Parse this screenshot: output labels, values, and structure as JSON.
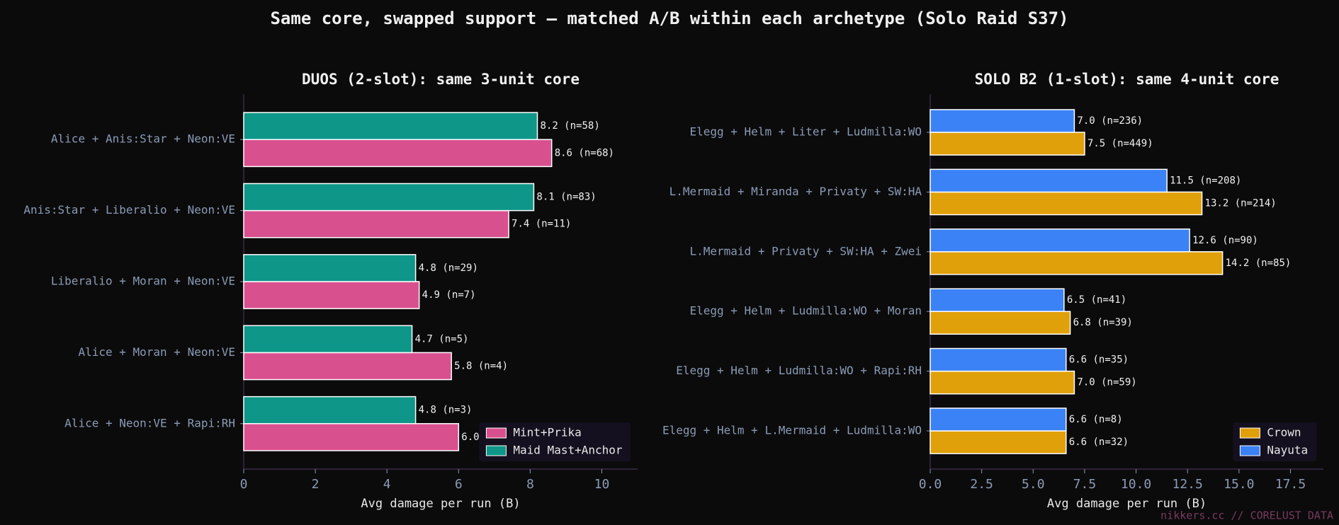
{
  "title": "Same core, swapped support — matched A/B within each archetype  (Solo Raid S37)",
  "footer": "nikkers.cc // CORELUST DATA",
  "chart_data": [
    {
      "type": "barh",
      "title": "DUOS (2-slot): same 3-unit core",
      "x_label": "Avg damage per run (B)",
      "categories": [
        "Alice + Anis:Star + Neon:VE",
        "Anis:Star + Liberalio + Neon:VE",
        "Liberalio + Moran + Neon:VE",
        "Alice + Moran + Neon:VE",
        "Alice + Neon:VE + Rapi:RH"
      ],
      "series": [
        {
          "name": "Mint+Prika",
          "color": "#d9508f",
          "values": [
            8.6,
            7.4,
            4.9,
            5.8,
            6.0
          ],
          "value_labels": [
            "8.6 (n=68)",
            "7.4 (n=11)",
            "4.9 (n=7)",
            "5.8 (n=4)",
            "6.0"
          ]
        },
        {
          "name": "Maid Mast+Anchor",
          "color": "#0e9688",
          "values": [
            8.2,
            8.1,
            4.8,
            4.7,
            4.8
          ],
          "value_labels": [
            "8.2 (n=58)",
            "8.1 (n=83)",
            "4.8 (n=29)",
            "4.7 (n=5)",
            "4.8 (n=3)"
          ]
        }
      ],
      "xlim": [
        0,
        11
      ],
      "xticks": [
        0,
        2,
        4,
        6,
        8,
        10
      ],
      "legend": "lower right"
    },
    {
      "type": "barh",
      "title": "SOLO B2 (1-slot): same 4-unit core",
      "x_label": "Avg damage per run (B)",
      "categories": [
        "Elegg + Helm + Liter + Ludmilla:WO",
        "L.Mermaid + Miranda + Privaty + SW:HA",
        "L.Mermaid + Privaty + SW:HA + Zwei",
        "Elegg + Helm + Ludmilla:WO + Moran",
        "Elegg + Helm + Ludmilla:WO + Rapi:RH",
        "Elegg + Helm + L.Mermaid + Ludmilla:WO"
      ],
      "series": [
        {
          "name": "Crown",
          "color": "#e0a00a",
          "values": [
            7.5,
            13.2,
            14.2,
            6.8,
            7.0,
            6.6
          ],
          "value_labels": [
            "7.5 (n=449)",
            "13.2 (n=214)",
            "14.2 (n=85)",
            "6.8 (n=39)",
            "7.0 (n=59)",
            "6.6 (n=32)"
          ]
        },
        {
          "name": "Nayuta",
          "color": "#3b82f6",
          "values": [
            7.0,
            11.5,
            12.6,
            6.5,
            6.6,
            6.6
          ],
          "value_labels": [
            "7.0 (n=236)",
            "11.5 (n=208)",
            "12.6 (n=90)",
            "6.5 (n=41)",
            "6.6 (n=35)",
            "6.6 (n=8)"
          ]
        }
      ],
      "xlim": [
        0,
        19.1
      ],
      "xticks": [
        {
          "value": 0,
          "label": "0.0"
        },
        2.5,
        {
          "value": 5,
          "label": "5.0"
        },
        7.5,
        {
          "value": 10,
          "label": "10.0"
        },
        12.5,
        {
          "value": 15,
          "label": "15.0"
        },
        17.5
      ],
      "legend": "lower right"
    }
  ]
}
